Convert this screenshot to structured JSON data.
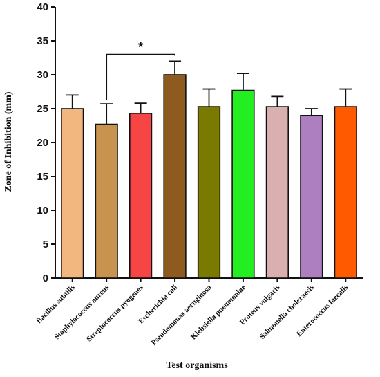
{
  "chart_data": {
    "type": "bar",
    "xlabel": "Test organisms",
    "ylabel": "Zone of Inhibition (mm)",
    "ylim": [
      0,
      40
    ],
    "yticks": [
      0,
      5,
      10,
      15,
      20,
      25,
      30,
      35,
      40
    ],
    "categories": [
      "Bacillus subtilis",
      "Staphylococcus aureus",
      "Streptococcus pyogenes",
      "Escherichia coli",
      "Pseudomonas aeruginosa",
      "Klebsiella pneumoniae",
      "Proteus vulgaris",
      "Salmonella choleraesis",
      "Enterococcus faecalis"
    ],
    "values": [
      25.0,
      22.7,
      24.3,
      30.0,
      25.3,
      27.7,
      25.3,
      24.0,
      25.3
    ],
    "errors": [
      2.0,
      3.0,
      1.5,
      2.0,
      2.6,
      2.5,
      1.5,
      1.0,
      2.6
    ],
    "colors": [
      "#F2B77E",
      "#C8924F",
      "#F74545",
      "#8E5A1F",
      "#7A7A00",
      "#22EE22",
      "#D9AFAF",
      "#AE7FC0",
      "#FF5A00"
    ],
    "grid": false,
    "significance": {
      "from_category": "Staphylococcus aureus",
      "to_category": "Escherichia coli",
      "level": 33,
      "label": "*"
    }
  }
}
